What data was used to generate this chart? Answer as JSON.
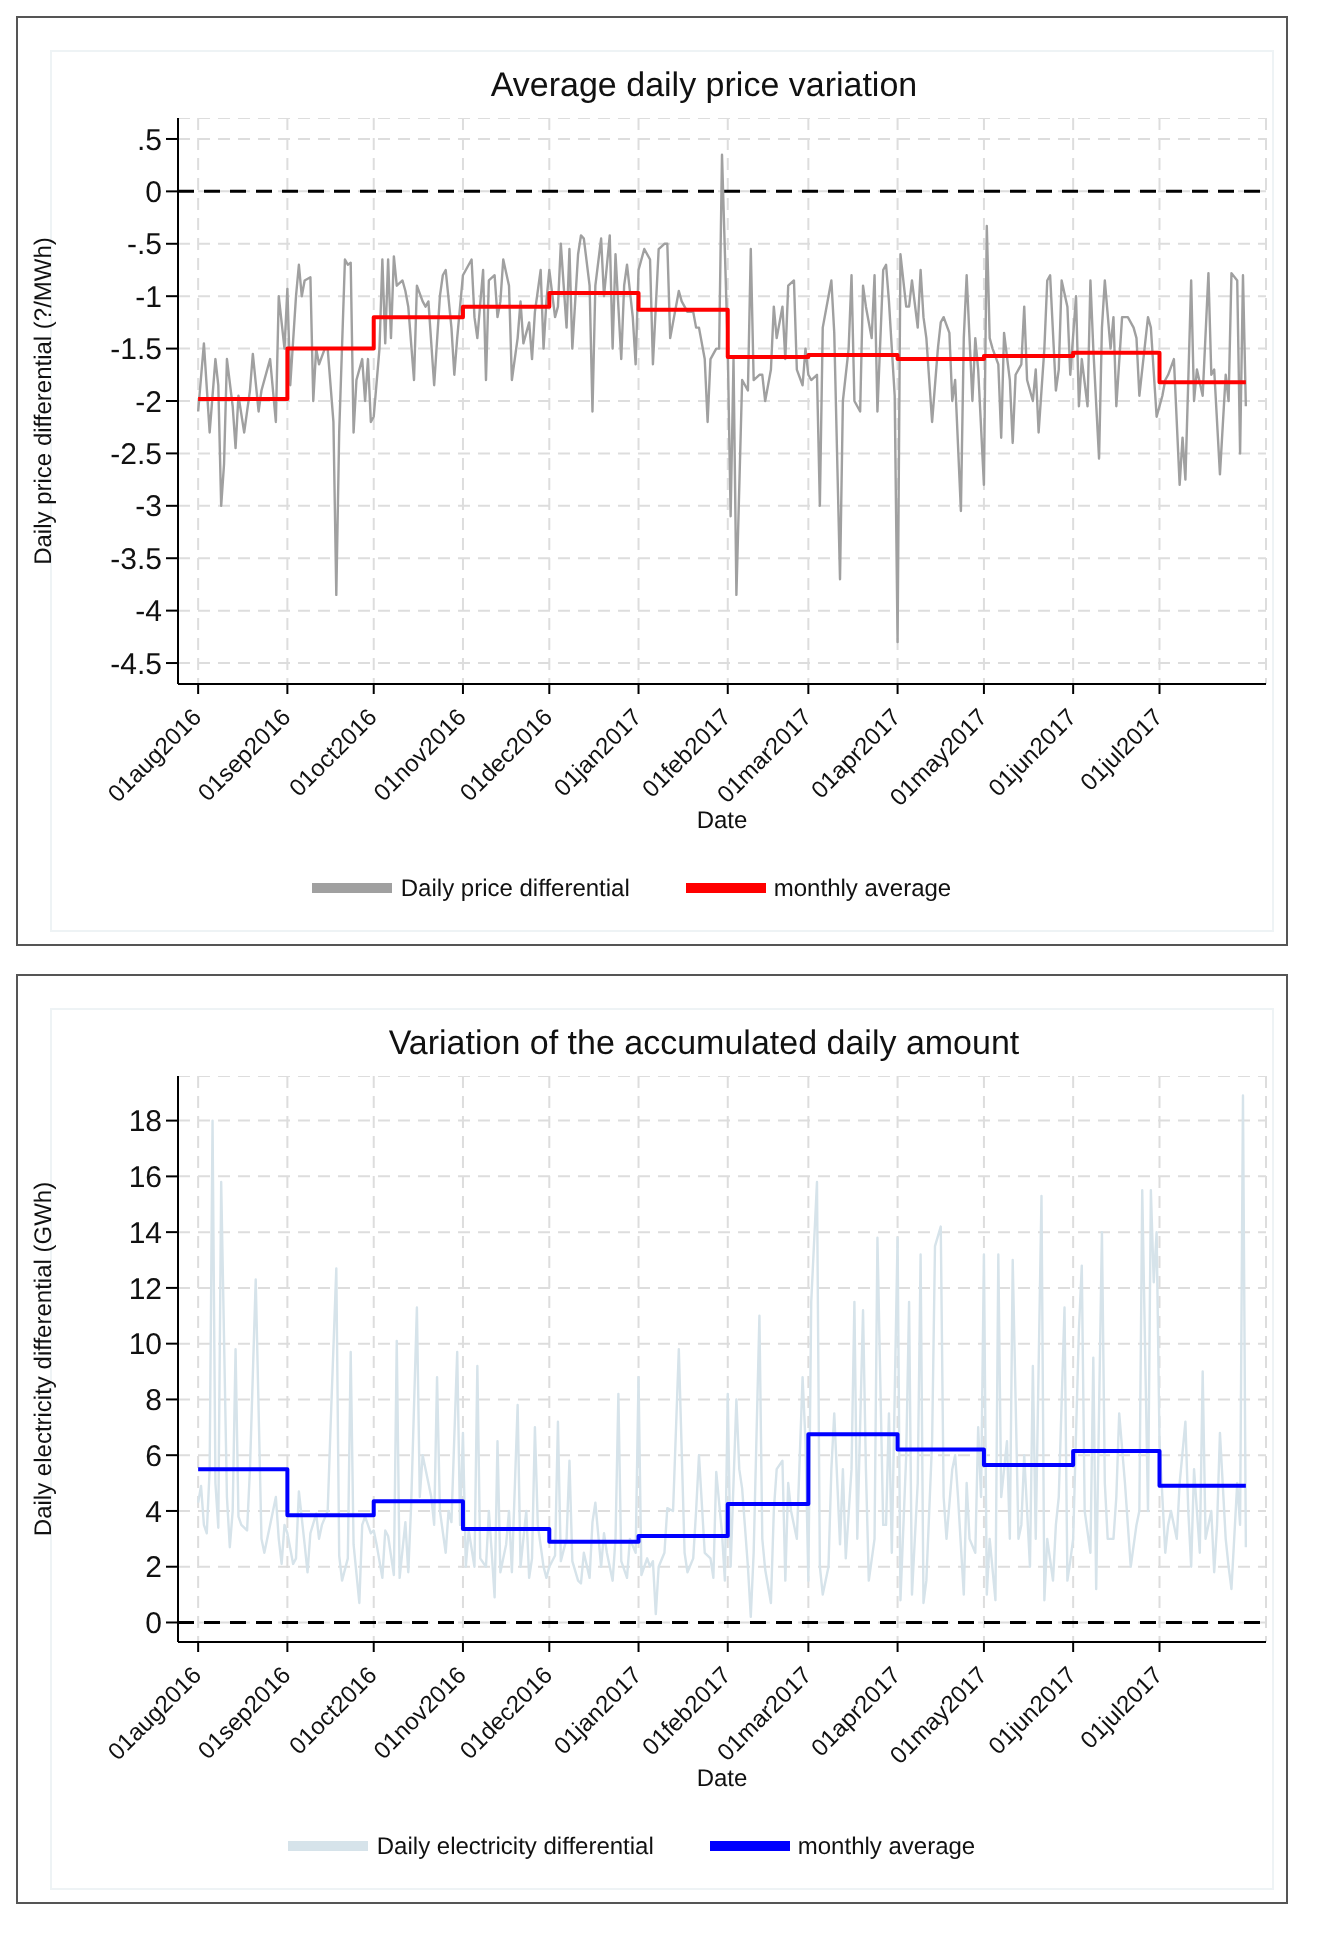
{
  "chart_data": [
    {
      "type": "line",
      "title": "Average daily price variation",
      "xlabel": "Date",
      "ylabel": "Daily price differential (?/MWh)",
      "xlim": [
        "2016-07-25",
        "2017-08-07"
      ],
      "ylim": [
        -4.7,
        0.7
      ],
      "xticks": [
        {
          "value": "2016-08-01",
          "label": "01aug2016"
        },
        {
          "value": "2016-09-01",
          "label": "01sep2016"
        },
        {
          "value": "2016-10-01",
          "label": "01oct2016"
        },
        {
          "value": "2016-11-01",
          "label": "01nov2016"
        },
        {
          "value": "2016-12-01",
          "label": "01dec2016"
        },
        {
          "value": "2017-01-01",
          "label": "01jan2017"
        },
        {
          "value": "2017-02-01",
          "label": "01feb2017"
        },
        {
          "value": "2017-03-01",
          "label": "01mar2017"
        },
        {
          "value": "2017-04-01",
          "label": "01apr2017"
        },
        {
          "value": "2017-05-01",
          "label": "01may2017"
        },
        {
          "value": "2017-06-01",
          "label": "01jun2017"
        },
        {
          "value": "2017-07-01",
          "label": "01jul2017"
        }
      ],
      "yticks": [
        {
          "value": 0.5,
          "label": ".5"
        },
        0,
        {
          "value": -0.5,
          "label": "-.5"
        },
        -1,
        -1.5,
        -2,
        -2.5,
        -3,
        -3.5,
        -4,
        -4.5
      ],
      "grid": true,
      "legend": "bottom",
      "ref_lines": [
        {
          "axis": "y",
          "value": 0,
          "color": "#000000",
          "line_style": "dashed"
        }
      ],
      "series": [
        {
          "name": "Daily price differential",
          "type": "line",
          "color": "#a0a0a0",
          "x": [
            "2016-08-01",
            "2016-08-03",
            "2016-08-05",
            "2016-08-07",
            "2016-08-08",
            "2016-08-09",
            "2016-08-10",
            "2016-08-11",
            "2016-08-13",
            "2016-08-14",
            "2016-08-15",
            "2016-08-17",
            "2016-08-19",
            "2016-08-20",
            "2016-08-22",
            "2016-08-23",
            "2016-08-26",
            "2016-08-28",
            "2016-08-29",
            "2016-08-31",
            "2016-09-01",
            "2016-09-02",
            "2016-09-04",
            "2016-09-05",
            "2016-09-06",
            "2016-09-07",
            "2016-09-09",
            "2016-09-10",
            "2016-09-11",
            "2016-09-12",
            "2016-09-14",
            "2016-09-15",
            "2016-09-17",
            "2016-09-18",
            "2016-09-19",
            "2016-09-21",
            "2016-09-22",
            "2016-09-23",
            "2016-09-24",
            "2016-09-25",
            "2016-09-27",
            "2016-09-28",
            "2016-09-29",
            "2016-09-30",
            "2016-10-01",
            "2016-10-03",
            "2016-10-04",
            "2016-10-05",
            "2016-10-06",
            "2016-10-07",
            "2016-10-08",
            "2016-10-09",
            "2016-10-11",
            "2016-10-12",
            "2016-10-13",
            "2016-10-15",
            "2016-10-16",
            "2016-10-18",
            "2016-10-19",
            "2016-10-20",
            "2016-10-22",
            "2016-10-24",
            "2016-10-25",
            "2016-10-26",
            "2016-10-28",
            "2016-10-29",
            "2016-10-30",
            "2016-11-01",
            "2016-11-02",
            "2016-11-04",
            "2016-11-05",
            "2016-11-06",
            "2016-11-08",
            "2016-11-09",
            "2016-11-10",
            "2016-11-12",
            "2016-11-13",
            "2016-11-14",
            "2016-11-15",
            "2016-11-17",
            "2016-11-18",
            "2016-11-20",
            "2016-11-21",
            "2016-11-22",
            "2016-11-24",
            "2016-11-25",
            "2016-11-26",
            "2016-11-28",
            "2016-11-29",
            "2016-11-30",
            "2016-12-01",
            "2016-12-03",
            "2016-12-04",
            "2016-12-05",
            "2016-12-07",
            "2016-12-08",
            "2016-12-09",
            "2016-12-11",
            "2016-12-12",
            "2016-12-13",
            "2016-12-15",
            "2016-12-16",
            "2016-12-17",
            "2016-12-19",
            "2016-12-20",
            "2016-12-22",
            "2016-12-23",
            "2016-12-24",
            "2016-12-26",
            "2016-12-27",
            "2016-12-28",
            "2016-12-30",
            "2016-12-31",
            "2017-01-01",
            "2017-01-03",
            "2017-01-05",
            "2017-01-06",
            "2017-01-08",
            "2017-01-10",
            "2017-01-11",
            "2017-01-12",
            "2017-01-13",
            "2017-01-15",
            "2017-01-16",
            "2017-01-17",
            "2017-01-18",
            "2017-01-20",
            "2017-01-21",
            "2017-01-22",
            "2017-01-24",
            "2017-01-25",
            "2017-01-26",
            "2017-01-28",
            "2017-01-29",
            "2017-01-30",
            "2017-02-01",
            "2017-02-02",
            "2017-02-03",
            "2017-02-04",
            "2017-02-06",
            "2017-02-08",
            "2017-02-09",
            "2017-02-10",
            "2017-02-12",
            "2017-02-13",
            "2017-02-14",
            "2017-02-16",
            "2017-02-17",
            "2017-02-18",
            "2017-02-20",
            "2017-02-21",
            "2017-02-22",
            "2017-02-24",
            "2017-02-25",
            "2017-02-27",
            "2017-02-28",
            "2017-03-01",
            "2017-03-02",
            "2017-03-04",
            "2017-03-05",
            "2017-03-06",
            "2017-03-08",
            "2017-03-09",
            "2017-03-10",
            "2017-03-12",
            "2017-03-13",
            "2017-03-15",
            "2017-03-16",
            "2017-03-17",
            "2017-03-19",
            "2017-03-20",
            "2017-03-21",
            "2017-03-23",
            "2017-03-24",
            "2017-03-25",
            "2017-03-27",
            "2017-03-28",
            "2017-03-29",
            "2017-03-31",
            "2017-04-01",
            "2017-04-02",
            "2017-04-04",
            "2017-04-05",
            "2017-04-06",
            "2017-04-08",
            "2017-04-09",
            "2017-04-10",
            "2017-04-11",
            "2017-04-13",
            "2017-04-15",
            "2017-04-16",
            "2017-04-17",
            "2017-04-19",
            "2017-04-20",
            "2017-04-21",
            "2017-04-23",
            "2017-04-24",
            "2017-04-25",
            "2017-04-27",
            "2017-04-28",
            "2017-04-29",
            "2017-05-01",
            "2017-05-02",
            "2017-05-03",
            "2017-05-04",
            "2017-05-06",
            "2017-05-07",
            "2017-05-08",
            "2017-05-10",
            "2017-05-11",
            "2017-05-12",
            "2017-05-14",
            "2017-05-15",
            "2017-05-16",
            "2017-05-18",
            "2017-05-19",
            "2017-05-20",
            "2017-05-22",
            "2017-05-23",
            "2017-05-24",
            "2017-05-26",
            "2017-05-27",
            "2017-05-28",
            "2017-05-30",
            "2017-05-31",
            "2017-06-02",
            "2017-06-03",
            "2017-06-04",
            "2017-06-06",
            "2017-06-07",
            "2017-06-08",
            "2017-06-10",
            "2017-06-11",
            "2017-06-12",
            "2017-06-14",
            "2017-06-15",
            "2017-06-16",
            "2017-06-18",
            "2017-06-19",
            "2017-06-20",
            "2017-06-22",
            "2017-06-23",
            "2017-06-24",
            "2017-06-26",
            "2017-06-27",
            "2017-06-28",
            "2017-06-30",
            "2017-07-02",
            "2017-07-03",
            "2017-07-04",
            "2017-07-06",
            "2017-07-08",
            "2017-07-09",
            "2017-07-10",
            "2017-07-12",
            "2017-07-13",
            "2017-07-14",
            "2017-07-16",
            "2017-07-18",
            "2017-07-19",
            "2017-07-20",
            "2017-07-22",
            "2017-07-24",
            "2017-07-25",
            "2017-07-26",
            "2017-07-28",
            "2017-07-29",
            "2017-07-30",
            "2017-07-31"
          ],
          "values": [
            -2.1,
            -1.45,
            -2.3,
            -1.6,
            -1.85,
            -3.0,
            -2.6,
            -1.6,
            -2.05,
            -2.45,
            -1.95,
            -2.3,
            -1.9,
            -1.55,
            -2.1,
            -1.9,
            -1.6,
            -2.2,
            -1.0,
            -1.5,
            -0.93,
            -1.85,
            -1.0,
            -0.7,
            -1.0,
            -0.85,
            -0.82,
            -2.0,
            -1.5,
            -1.65,
            -1.5,
            -1.5,
            -2.2,
            -3.85,
            -2.3,
            -0.65,
            -0.7,
            -0.68,
            -2.3,
            -1.8,
            -1.6,
            -2.0,
            -1.6,
            -2.2,
            -2.15,
            -1.5,
            -0.65,
            -1.45,
            -0.65,
            -1.4,
            -0.62,
            -0.9,
            -0.85,
            -0.95,
            -1.1,
            -1.8,
            -0.9,
            -1.05,
            -1.1,
            -1.05,
            -1.85,
            -1.0,
            -0.8,
            -0.75,
            -1.3,
            -1.75,
            -1.4,
            -0.8,
            -0.75,
            -0.65,
            -1.2,
            -1.4,
            -0.75,
            -1.8,
            -0.85,
            -0.8,
            -1.2,
            -1.05,
            -0.65,
            -0.9,
            -1.8,
            -1.4,
            -1.05,
            -1.45,
            -1.25,
            -1.6,
            -1.15,
            -0.75,
            -1.5,
            -1.05,
            -0.75,
            -1.2,
            -1.1,
            -0.5,
            -1.3,
            -0.55,
            -1.5,
            -0.6,
            -0.42,
            -0.45,
            -0.9,
            -2.1,
            -0.9,
            -0.45,
            -1.0,
            -0.42,
            -1.5,
            -0.6,
            -1.6,
            -0.9,
            -0.7,
            -1.2,
            -1.65,
            -0.75,
            -0.55,
            -0.65,
            -1.65,
            -0.55,
            -0.5,
            -0.5,
            -1.4,
            -1.25,
            -0.95,
            -1.05,
            -1.1,
            -1.15,
            -1.15,
            -1.3,
            -1.3,
            -1.6,
            -2.2,
            -1.6,
            -1.5,
            -1.5,
            0.35,
            -1.5,
            -3.1,
            -1.6,
            -3.85,
            -1.8,
            -1.9,
            -0.55,
            -1.8,
            -1.75,
            -1.75,
            -2.0,
            -1.7,
            -1.1,
            -1.4,
            -1.1,
            -1.6,
            -0.9,
            -0.85,
            -1.7,
            -1.85,
            -1.5,
            -1.75,
            -1.8,
            -1.75,
            -3.0,
            -1.3,
            -1.0,
            -0.85,
            -1.35,
            -3.7,
            -2.0,
            -1.5,
            -0.8,
            -2.0,
            -2.1,
            -0.9,
            -1.1,
            -1.4,
            -0.8,
            -2.1,
            -0.75,
            -0.7,
            -1.05,
            -1.95,
            -4.3,
            -0.6,
            -1.1,
            -1.1,
            -0.85,
            -1.3,
            -0.75,
            -1.2,
            -1.4,
            -2.2,
            -1.5,
            -1.25,
            -1.2,
            -1.35,
            -2.0,
            -1.8,
            -3.05,
            -1.4,
            -0.8,
            -2.0,
            -1.4,
            -1.7,
            -2.8,
            -0.33,
            -1.4,
            -1.5,
            -1.65,
            -2.35,
            -1.35,
            -1.8,
            -2.4,
            -1.75,
            -1.65,
            -1.1,
            -1.8,
            -2.0,
            -1.7,
            -2.3,
            -1.5,
            -0.85,
            -0.8,
            -1.9,
            -1.7,
            -0.85,
            -1.1,
            -1.75,
            -1.0,
            -2.05,
            -1.6,
            -2.05,
            -0.85,
            -1.5,
            -2.55,
            -1.3,
            -0.85,
            -1.5,
            -1.2,
            -2.05,
            -1.2,
            -1.2,
            -1.2,
            -1.3,
            -1.4,
            -1.95,
            -1.45,
            -1.2,
            -1.3,
            -2.15,
            -1.95,
            -1.8,
            -1.75,
            -1.6,
            -2.8,
            -2.35,
            -2.75,
            -0.85,
            -2.0,
            -1.7,
            -1.95,
            -0.78,
            -1.75,
            -1.7,
            -2.7,
            -1.75,
            -2.0,
            -0.78,
            -0.85,
            -2.5,
            -0.8,
            -2.05
          ]
        },
        {
          "name": "monthly average",
          "type": "step",
          "color": "#ff0000",
          "x": [
            "2016-08-01",
            "2016-09-01",
            "2016-10-01",
            "2016-11-01",
            "2016-12-01",
            "2017-01-01",
            "2017-02-01",
            "2017-03-01",
            "2017-04-01",
            "2017-05-01",
            "2017-06-01",
            "2017-07-01",
            "2017-07-31"
          ],
          "values": [
            -1.98,
            -1.5,
            -1.2,
            -1.1,
            -0.97,
            -1.13,
            -1.58,
            -1.56,
            -1.6,
            -1.57,
            -1.54,
            -1.82,
            -1.82
          ]
        }
      ]
    },
    {
      "type": "line",
      "title": "Variation of the accumulated daily amount",
      "xlabel": "Date",
      "ylabel": "Daily electricity differential (GWh)",
      "xlim": [
        "2016-07-25",
        "2017-08-07"
      ],
      "ylim": [
        -0.7,
        19.6
      ],
      "xticks": [
        {
          "value": "2016-08-01",
          "label": "01aug2016"
        },
        {
          "value": "2016-09-01",
          "label": "01sep2016"
        },
        {
          "value": "2016-10-01",
          "label": "01oct2016"
        },
        {
          "value": "2016-11-01",
          "label": "01nov2016"
        },
        {
          "value": "2016-12-01",
          "label": "01dec2016"
        },
        {
          "value": "2017-01-01",
          "label": "01jan2017"
        },
        {
          "value": "2017-02-01",
          "label": "01feb2017"
        },
        {
          "value": "2017-03-01",
          "label": "01mar2017"
        },
        {
          "value": "2017-04-01",
          "label": "01apr2017"
        },
        {
          "value": "2017-05-01",
          "label": "01may2017"
        },
        {
          "value": "2017-06-01",
          "label": "01jun2017"
        },
        {
          "value": "2017-07-01",
          "label": "01jul2017"
        }
      ],
      "yticks": [
        0,
        2,
        4,
        6,
        8,
        10,
        12,
        14,
        16,
        18
      ],
      "grid": true,
      "legend": "bottom",
      "ref_lines": [
        {
          "axis": "y",
          "value": 0,
          "color": "#000000",
          "line_style": "dashed"
        }
      ],
      "series": [
        {
          "name": "Daily electricity differential",
          "type": "line",
          "color": "#d6e3ea",
          "x": [
            "2016-08-01",
            "2016-08-02",
            "2016-08-03",
            "2016-08-04",
            "2016-08-05",
            "2016-08-06",
            "2016-08-07",
            "2016-08-08",
            "2016-08-09",
            "2016-08-11",
            "2016-08-12",
            "2016-08-13",
            "2016-08-14",
            "2016-08-15",
            "2016-08-16",
            "2016-08-18",
            "2016-08-19",
            "2016-08-21",
            "2016-08-23",
            "2016-08-24",
            "2016-08-25",
            "2016-08-26",
            "2016-08-28",
            "2016-08-29",
            "2016-08-30",
            "2016-08-31",
            "2016-09-01",
            "2016-09-03",
            "2016-09-04",
            "2016-09-05",
            "2016-09-07",
            "2016-09-08",
            "2016-09-09",
            "2016-09-11",
            "2016-09-12",
            "2016-09-13",
            "2016-09-15",
            "2016-09-16",
            "2016-09-18",
            "2016-09-19",
            "2016-09-20",
            "2016-09-22",
            "2016-09-23",
            "2016-09-24",
            "2016-09-26",
            "2016-09-27",
            "2016-09-28",
            "2016-09-30",
            "2016-10-01",
            "2016-10-02",
            "2016-10-04",
            "2016-10-05",
            "2016-10-06",
            "2016-10-08",
            "2016-10-09",
            "2016-10-10",
            "2016-10-12",
            "2016-10-13",
            "2016-10-14",
            "2016-10-16",
            "2016-10-17",
            "2016-10-18",
            "2016-10-20",
            "2016-10-21",
            "2016-10-22",
            "2016-10-23",
            "2016-10-24",
            "2016-10-26",
            "2016-10-27",
            "2016-10-28",
            "2016-10-30",
            "2016-10-31",
            "2016-11-01",
            "2016-11-02",
            "2016-11-03",
            "2016-11-05",
            "2016-11-06",
            "2016-11-07",
            "2016-11-09",
            "2016-11-10",
            "2016-11-11",
            "2016-11-12",
            "2016-11-13",
            "2016-11-14",
            "2016-11-16",
            "2016-11-17",
            "2016-11-18",
            "2016-11-20",
            "2016-11-21",
            "2016-11-23",
            "2016-11-24",
            "2016-11-25",
            "2016-11-26",
            "2016-11-27",
            "2016-11-29",
            "2016-11-30",
            "2016-12-01",
            "2016-12-03",
            "2016-12-04",
            "2016-12-05",
            "2016-12-07",
            "2016-12-08",
            "2016-12-09",
            "2016-12-11",
            "2016-12-12",
            "2016-12-13",
            "2016-12-15",
            "2016-12-16",
            "2016-12-17",
            "2016-12-19",
            "2016-12-20",
            "2016-12-21",
            "2016-12-23",
            "2016-12-24",
            "2016-12-25",
            "2016-12-26",
            "2016-12-28",
            "2016-12-29",
            "2016-12-31",
            "2017-01-01",
            "2017-01-02",
            "2017-01-04",
            "2017-01-05",
            "2017-01-06",
            "2017-01-07",
            "2017-01-08",
            "2017-01-10",
            "2017-01-11",
            "2017-01-13",
            "2017-01-15",
            "2017-01-17",
            "2017-01-18",
            "2017-01-20",
            "2017-01-21",
            "2017-01-22",
            "2017-01-24",
            "2017-01-26",
            "2017-01-27",
            "2017-01-28",
            "2017-01-30",
            "2017-01-31",
            "2017-02-01",
            "2017-02-02",
            "2017-02-04",
            "2017-02-05",
            "2017-02-06",
            "2017-02-08",
            "2017-02-09",
            "2017-02-10",
            "2017-02-12",
            "2017-02-13",
            "2017-02-14",
            "2017-02-16",
            "2017-02-17",
            "2017-02-18",
            "2017-02-20",
            "2017-02-21",
            "2017-02-22",
            "2017-02-23",
            "2017-02-25",
            "2017-02-27",
            "2017-02-28",
            "2017-03-01",
            "2017-03-02",
            "2017-03-04",
            "2017-03-05",
            "2017-03-06",
            "2017-03-08",
            "2017-03-09",
            "2017-03-10",
            "2017-03-12",
            "2017-03-13",
            "2017-03-14",
            "2017-03-16",
            "2017-03-17",
            "2017-03-18",
            "2017-03-20",
            "2017-03-21",
            "2017-03-22",
            "2017-03-24",
            "2017-03-25",
            "2017-03-27",
            "2017-03-28",
            "2017-03-29",
            "2017-03-30",
            "2017-04-01",
            "2017-04-02",
            "2017-04-04",
            "2017-04-05",
            "2017-04-06",
            "2017-04-08",
            "2017-04-09",
            "2017-04-10",
            "2017-04-11",
            "2017-04-13",
            "2017-04-14",
            "2017-04-16",
            "2017-04-17",
            "2017-04-18",
            "2017-04-20",
            "2017-04-21",
            "2017-04-22",
            "2017-04-24",
            "2017-04-25",
            "2017-04-26",
            "2017-04-28",
            "2017-04-29",
            "2017-04-30",
            "2017-05-01",
            "2017-05-02",
            "2017-05-03",
            "2017-05-05",
            "2017-05-06",
            "2017-05-07",
            "2017-05-09",
            "2017-05-10",
            "2017-05-11",
            "2017-05-13",
            "2017-05-14",
            "2017-05-15",
            "2017-05-17",
            "2017-05-18",
            "2017-05-19",
            "2017-05-21",
            "2017-05-22",
            "2017-05-23",
            "2017-05-25",
            "2017-05-26",
            "2017-05-27",
            "2017-05-29",
            "2017-05-30",
            "2017-05-31",
            "2017-06-01",
            "2017-06-03",
            "2017-06-04",
            "2017-06-05",
            "2017-06-07",
            "2017-06-08",
            "2017-06-09",
            "2017-06-11",
            "2017-06-12",
            "2017-06-13",
            "2017-06-15",
            "2017-06-16",
            "2017-06-17",
            "2017-06-19",
            "2017-06-20",
            "2017-06-21",
            "2017-06-23",
            "2017-06-24",
            "2017-06-25",
            "2017-06-27",
            "2017-06-28",
            "2017-06-29",
            "2017-06-30",
            "2017-07-01",
            "2017-07-03",
            "2017-07-04",
            "2017-07-05",
            "2017-07-07",
            "2017-07-08",
            "2017-07-10",
            "2017-07-11",
            "2017-07-12",
            "2017-07-13",
            "2017-07-15",
            "2017-07-16",
            "2017-07-17",
            "2017-07-19",
            "2017-07-20",
            "2017-07-21",
            "2017-07-22",
            "2017-07-24",
            "2017-07-25",
            "2017-07-26",
            "2017-07-28",
            "2017-07-29",
            "2017-07-30",
            "2017-07-31"
          ],
          "values": [
            4.3,
            4.9,
            3.5,
            3.2,
            5.5,
            18,
            5,
            3.4,
            15.8,
            4.5,
            2.7,
            4,
            9.8,
            3.8,
            3.5,
            3.3,
            5.5,
            12.3,
            3,
            2.5,
            3,
            3.5,
            4.5,
            3,
            2.1,
            3.5,
            3.2,
            2.1,
            2.3,
            4.7,
            2.8,
            1.8,
            3.2,
            3.9,
            3,
            3.5,
            4,
            7,
            12.7,
            2.4,
            1.5,
            2.3,
            9.7,
            2.8,
            0.7,
            3.5,
            3.8,
            3.2,
            3.3,
            2.8,
            1.6,
            3.3,
            3.1,
            1.7,
            10.1,
            1.6,
            3.6,
            1.8,
            4.2,
            11.3,
            4.5,
            6,
            5,
            4.5,
            3.5,
            8.8,
            4,
            2.5,
            4,
            3.6,
            9.7,
            3.5,
            6.8,
            2,
            3.3,
            2,
            9.2,
            2.3,
            2,
            4,
            2.5,
            0.9,
            6.5,
            1.8,
            2.8,
            4,
            1.8,
            7.8,
            2,
            4,
            1.6,
            2.3,
            7,
            3.5,
            2,
            1.6,
            2,
            2.4,
            7.2,
            2.2,
            3,
            5.8,
            2.2,
            1.5,
            1.4,
            2.5,
            1.6,
            3.6,
            4.3,
            2,
            3.2,
            2.5,
            1.5,
            3,
            8.2,
            2.2,
            1.6,
            3,
            2.5,
            8.8,
            1.7,
            2.3,
            2,
            2.2,
            0.3,
            2,
            2.5,
            4.1,
            4,
            9.8,
            2.5,
            1.8,
            2.3,
            4,
            6,
            2.5,
            2.3,
            1.6,
            5.4,
            3.2,
            1.5,
            8.2,
            2,
            8,
            5.5,
            4.8,
            2,
            0.2,
            2.5,
            11,
            3,
            1.9,
            0.7,
            4,
            5.5,
            5.8,
            1.5,
            5,
            4,
            3,
            8.8,
            6.5,
            1.5,
            11.5,
            15.8,
            2,
            1,
            2,
            5.5,
            7.5,
            2.8,
            5.5,
            2.3,
            5.5,
            11.5,
            3,
            11.2,
            5.5,
            1.5,
            3,
            13.8,
            3.5,
            3.5,
            7.5,
            2.5,
            13.8,
            0.8,
            6,
            11.5,
            1,
            5,
            13.2,
            0.7,
            1.5,
            6.5,
            13.5,
            14.2,
            4.5,
            3,
            5.5,
            6,
            4.5,
            1,
            5,
            3,
            2.5,
            7,
            4.5,
            13.2,
            1,
            3,
            0.8,
            13.2,
            4.5,
            6.5,
            3,
            13,
            3,
            3.5,
            6,
            2,
            9.2,
            3,
            15.3,
            0.8,
            3,
            1.5,
            3.5,
            4.5,
            11.3,
            1.5,
            2.2,
            3,
            10.5,
            12.8,
            4,
            2.5,
            9.5,
            1.2,
            14,
            5,
            3,
            3,
            4.5,
            7.5,
            5,
            3.5,
            2,
            3.5,
            4,
            15.5,
            4,
            15.5,
            12.2,
            14,
            6.5,
            2.5,
            3.5,
            4,
            3,
            5,
            7.2,
            4,
            2,
            5.5,
            2.5,
            9,
            3,
            4,
            1.8,
            3.5,
            6.8,
            3,
            2,
            1.2,
            5,
            3.5,
            18.9,
            2.7
          ]
        },
        {
          "name": "monthly average",
          "type": "step",
          "color": "#0000ff",
          "x": [
            "2016-08-01",
            "2016-09-01",
            "2016-10-01",
            "2016-11-01",
            "2016-12-01",
            "2017-01-01",
            "2017-02-01",
            "2017-03-01",
            "2017-04-01",
            "2017-05-01",
            "2017-06-01",
            "2017-07-01",
            "2017-07-31"
          ],
          "values": [
            5.5,
            3.85,
            4.35,
            3.35,
            2.9,
            3.1,
            4.25,
            6.75,
            6.2,
            5.65,
            6.15,
            4.9,
            4.9
          ]
        }
      ]
    }
  ]
}
